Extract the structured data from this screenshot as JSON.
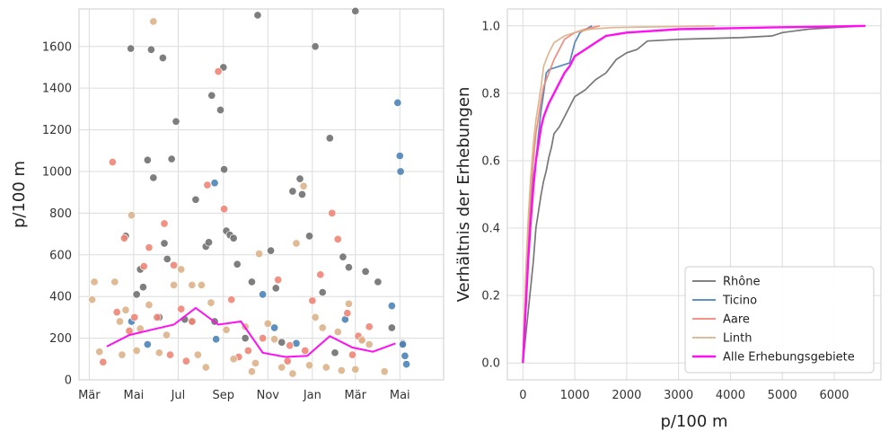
{
  "chart_data": [
    {
      "type": "scatter",
      "xlabel": "",
      "ylabel": "p/100 m",
      "xlim": [
        "2021-02-15",
        "2022-06-30"
      ],
      "ylim": [
        0,
        1780
      ],
      "x_ticks": [
        {
          "date": "2021-03-01",
          "label": "Mär"
        },
        {
          "date": "2021-05-01",
          "label": "Mai"
        },
        {
          "date": "2021-07-01",
          "label": "Jul"
        },
        {
          "date": "2021-09-01",
          "label": "Sep"
        },
        {
          "date": "2021-11-01",
          "label": "Nov"
        },
        {
          "date": "2022-01-01",
          "label": "Jan"
        },
        {
          "date": "2022-03-01",
          "label": "Mär"
        },
        {
          "date": "2022-05-01",
          "label": "Mai"
        }
      ],
      "y_ticks": [
        0,
        200,
        400,
        600,
        800,
        1000,
        1200,
        1400,
        1600
      ],
      "grid": true,
      "colors": {
        "Rhône": "#707070",
        "Ticino": "#4c84b8",
        "Aare": "#f08576",
        "Linth": "#dcb38a",
        "Alle": "#ff10f0"
      },
      "series": [
        {
          "name": "Rhône",
          "points": [
            [
              "2021-04-20",
              690
            ],
            [
              "2021-04-27",
              1590
            ],
            [
              "2021-05-10",
              530
            ],
            [
              "2021-05-14",
              445
            ],
            [
              "2021-05-20",
              1055
            ],
            [
              "2021-05-25",
              1585
            ],
            [
              "2021-05-28",
              970
            ],
            [
              "2021-06-10",
              1545
            ],
            [
              "2021-06-12",
              655
            ],
            [
              "2021-06-16",
              580
            ],
            [
              "2021-06-22",
              1060
            ],
            [
              "2021-06-28",
              1240
            ],
            [
              "2021-07-10",
              290
            ],
            [
              "2021-07-25",
              865
            ],
            [
              "2021-08-08",
              640
            ],
            [
              "2021-08-12",
              660
            ],
            [
              "2021-08-16",
              1365
            ],
            [
              "2021-08-28",
              1295
            ],
            [
              "2021-09-01",
              1500
            ],
            [
              "2021-09-02",
              1010
            ],
            [
              "2021-09-05",
              715
            ],
            [
              "2021-09-10",
              695
            ],
            [
              "2021-09-15",
              680
            ],
            [
              "2021-09-20",
              555
            ],
            [
              "2021-10-10",
              470
            ],
            [
              "2021-10-18",
              1750
            ],
            [
              "2021-11-05",
              620
            ],
            [
              "2021-11-12",
              440
            ],
            [
              "2021-12-05",
              905
            ],
            [
              "2021-12-15",
              965
            ],
            [
              "2021-12-18",
              890
            ],
            [
              "2021-12-28",
              690
            ],
            [
              "2022-01-05",
              1600
            ],
            [
              "2022-01-15",
              420
            ],
            [
              "2022-01-25",
              1160
            ],
            [
              "2022-02-12",
              590
            ],
            [
              "2022-02-20",
              540
            ],
            [
              "2022-03-01",
              1770
            ],
            [
              "2022-03-15",
              520
            ],
            [
              "2022-04-01",
              470
            ],
            [
              "2022-04-20",
              250
            ],
            [
              "2022-05-05",
              175
            ],
            [
              "2021-05-05",
              410
            ],
            [
              "2021-06-05",
              300
            ],
            [
              "2021-07-20",
              280
            ],
            [
              "2021-08-20",
              280
            ],
            [
              "2021-10-01",
              200
            ],
            [
              "2021-11-20",
              180
            ],
            [
              "2022-02-01",
              130
            ]
          ]
        },
        {
          "name": "Ticino",
          "points": [
            [
              "2021-04-28",
              280
            ],
            [
              "2021-05-20",
              170
            ],
            [
              "2021-08-20",
              945
            ],
            [
              "2021-08-22",
              195
            ],
            [
              "2021-10-25",
              410
            ],
            [
              "2021-11-10",
              250
            ],
            [
              "2021-12-10",
              175
            ],
            [
              "2022-02-15",
              290
            ],
            [
              "2022-04-20",
              355
            ],
            [
              "2022-04-28",
              1330
            ],
            [
              "2022-05-01",
              1075
            ],
            [
              "2022-05-02",
              1000
            ],
            [
              "2022-05-05",
              170
            ],
            [
              "2022-05-08",
              115
            ],
            [
              "2022-05-10",
              75
            ]
          ]
        },
        {
          "name": "Aare",
          "points": [
            [
              "2021-03-20",
              85
            ],
            [
              "2021-04-02",
              1045
            ],
            [
              "2021-04-08",
              325
            ],
            [
              "2021-04-18",
              680
            ],
            [
              "2021-04-25",
              235
            ],
            [
              "2021-05-02",
              300
            ],
            [
              "2021-05-15",
              545
            ],
            [
              "2021-05-22",
              635
            ],
            [
              "2021-06-02",
              300
            ],
            [
              "2021-06-12",
              750
            ],
            [
              "2021-06-25",
              550
            ],
            [
              "2021-07-05",
              340
            ],
            [
              "2021-07-20",
              280
            ],
            [
              "2021-08-10",
              935
            ],
            [
              "2021-08-25",
              1480
            ],
            [
              "2021-09-02",
              820
            ],
            [
              "2021-09-12",
              385
            ],
            [
              "2021-10-05",
              140
            ],
            [
              "2021-10-25",
              200
            ],
            [
              "2021-11-15",
              480
            ],
            [
              "2021-12-01",
              165
            ],
            [
              "2022-01-01",
              380
            ],
            [
              "2022-01-12",
              505
            ],
            [
              "2022-01-28",
              800
            ],
            [
              "2022-02-05",
              675
            ],
            [
              "2022-02-18",
              320
            ],
            [
              "2022-03-10",
              195
            ],
            [
              "2022-03-20",
              255
            ],
            [
              "2021-06-20",
              120
            ],
            [
              "2021-07-12",
              90
            ],
            [
              "2021-09-22",
              110
            ],
            [
              "2021-11-28",
              90
            ],
            [
              "2021-12-22",
              140
            ],
            [
              "2022-02-25",
              120
            ],
            [
              "2022-03-05",
              210
            ]
          ]
        },
        {
          "name": "Linth",
          "points": [
            [
              "2021-03-05",
              385
            ],
            [
              "2021-03-08",
              470
            ],
            [
              "2021-03-15",
              135
            ],
            [
              "2021-04-05",
              470
            ],
            [
              "2021-04-12",
              280
            ],
            [
              "2021-04-20",
              335
            ],
            [
              "2021-04-28",
              790
            ],
            [
              "2021-05-10",
              245
            ],
            [
              "2021-05-22",
              360
            ],
            [
              "2021-05-28",
              1720
            ],
            [
              "2021-06-15",
              215
            ],
            [
              "2021-06-25",
              455
            ],
            [
              "2021-07-05",
              530
            ],
            [
              "2021-07-20",
              455
            ],
            [
              "2021-08-02",
              455
            ],
            [
              "2021-08-15",
              370
            ],
            [
              "2021-09-05",
              240
            ],
            [
              "2021-10-01",
              255
            ],
            [
              "2021-10-20",
              605
            ],
            [
              "2021-11-01",
              270
            ],
            [
              "2021-11-10",
              195
            ],
            [
              "2021-12-10",
              655
            ],
            [
              "2021-12-20",
              930
            ],
            [
              "2022-01-05",
              300
            ],
            [
              "2022-01-15",
              250
            ],
            [
              "2022-02-05",
              230
            ],
            [
              "2022-02-20",
              365
            ],
            [
              "2022-03-10",
              190
            ],
            [
              "2022-03-20",
              170
            ],
            [
              "2021-05-05",
              140
            ],
            [
              "2021-06-05",
              130
            ],
            [
              "2021-07-28",
              120
            ],
            [
              "2021-09-15",
              100
            ],
            [
              "2021-10-15",
              80
            ],
            [
              "2021-11-20",
              60
            ],
            [
              "2021-12-28",
              70
            ],
            [
              "2022-01-20",
              60
            ],
            [
              "2022-03-01",
              50
            ],
            [
              "2022-04-10",
              40
            ],
            [
              "2021-04-15",
              120
            ],
            [
              "2021-08-08",
              60
            ],
            [
              "2021-10-10",
              40
            ],
            [
              "2021-12-05",
              30
            ],
            [
              "2022-02-10",
              45
            ]
          ]
        },
        {
          "name": "Alle Erhebungsgebiete",
          "line": true,
          "points": [
            [
              "2021-03-25",
              160
            ],
            [
              "2021-04-25",
              215
            ],
            [
              "2021-05-25",
              240
            ],
            [
              "2021-06-25",
              265
            ],
            [
              "2021-07-25",
              345
            ],
            [
              "2021-08-25",
              265
            ],
            [
              "2021-09-25",
              280
            ],
            [
              "2021-10-25",
              130
            ],
            [
              "2021-11-25",
              110
            ],
            [
              "2021-12-25",
              115
            ],
            [
              "2022-01-25",
              210
            ],
            [
              "2022-02-25",
              155
            ],
            [
              "2022-03-25",
              135
            ],
            [
              "2022-04-25",
              175
            ]
          ]
        }
      ]
    },
    {
      "type": "line",
      "xlabel": "p/100 m",
      "ylabel": "Verhältnis der Erhebungen",
      "xlim": [
        -300,
        6900
      ],
      "ylim": [
        -0.05,
        1.05
      ],
      "x_ticks": [
        0,
        1000,
        2000,
        3000,
        4000,
        5000,
        6000
      ],
      "y_ticks": [
        0.0,
        0.2,
        0.4,
        0.6,
        0.8,
        1.0
      ],
      "grid": true,
      "legend_position": "bottom-right",
      "legend": [
        "Rhône",
        "Ticino",
        "Aare",
        "Linth",
        "Alle Erhebungsgebiete"
      ],
      "series": [
        {
          "name": "Rhône",
          "color": "#707070",
          "x": [
            0,
            100,
            200,
            250,
            300,
            350,
            400,
            450,
            500,
            550,
            600,
            700,
            800,
            900,
            1000,
            1200,
            1400,
            1600,
            1800,
            2000,
            2200,
            2400,
            3000,
            4200,
            4800,
            5000,
            5500,
            6000,
            6600
          ],
          "y": [
            0,
            0.15,
            0.3,
            0.4,
            0.45,
            0.5,
            0.54,
            0.57,
            0.61,
            0.64,
            0.68,
            0.7,
            0.73,
            0.76,
            0.79,
            0.81,
            0.84,
            0.86,
            0.9,
            0.92,
            0.93,
            0.955,
            0.96,
            0.965,
            0.97,
            0.98,
            0.99,
            0.995,
            1.0
          ]
        },
        {
          "name": "Ticino",
          "color": "#4c84b8",
          "x": [
            0,
            50,
            100,
            150,
            200,
            250,
            300,
            350,
            400,
            450,
            500,
            700,
            900,
            1000,
            1100,
            1330
          ],
          "y": [
            0,
            0.2,
            0.38,
            0.47,
            0.55,
            0.6,
            0.68,
            0.75,
            0.8,
            0.86,
            0.87,
            0.88,
            0.89,
            0.95,
            0.98,
            1.0
          ]
        },
        {
          "name": "Aare",
          "color": "#f08576",
          "x": [
            0,
            50,
            100,
            150,
            200,
            250,
            300,
            350,
            400,
            500,
            600,
            700,
            800,
            1000,
            1200,
            1480
          ],
          "y": [
            0,
            0.22,
            0.38,
            0.5,
            0.6,
            0.68,
            0.73,
            0.78,
            0.82,
            0.86,
            0.9,
            0.93,
            0.96,
            0.98,
            0.99,
            1.0
          ]
        },
        {
          "name": "Linth",
          "color": "#dcb38a",
          "x": [
            0,
            50,
            100,
            150,
            200,
            250,
            300,
            350,
            400,
            500,
            600,
            800,
            1000,
            1300,
            1720,
            3700
          ],
          "y": [
            0,
            0.25,
            0.42,
            0.55,
            0.65,
            0.72,
            0.77,
            0.82,
            0.88,
            0.92,
            0.95,
            0.97,
            0.98,
            0.99,
            0.995,
            1.0
          ]
        },
        {
          "name": "Alle Erhebungsgebiete",
          "color": "#ff10f0",
          "x": [
            0,
            50,
            100,
            150,
            200,
            250,
            300,
            350,
            400,
            450,
            500,
            600,
            700,
            800,
            900,
            1000,
            1200,
            1400,
            1600,
            1800,
            2000,
            2500,
            3000,
            4000,
            5000,
            6000,
            6600
          ],
          "y": [
            0,
            0.15,
            0.3,
            0.42,
            0.52,
            0.6,
            0.65,
            0.7,
            0.73,
            0.75,
            0.77,
            0.8,
            0.83,
            0.86,
            0.88,
            0.91,
            0.93,
            0.95,
            0.97,
            0.975,
            0.98,
            0.985,
            0.99,
            0.993,
            0.996,
            0.998,
            1.0
          ]
        }
      ]
    }
  ]
}
